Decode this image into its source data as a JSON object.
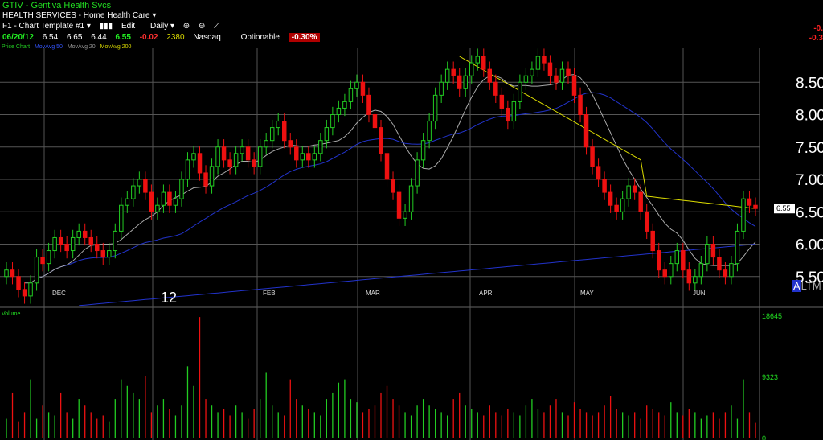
{
  "header": {
    "title": "GTIV - Gentiva Health Svcs",
    "industry": "HEALTH SERVICES - Home Health Care ▾",
    "toolbar": [
      "F1 - Chart Template #1 ▾",
      "Edit",
      "Daily ▾"
    ],
    "quote": {
      "date": "06/20/12",
      "open": "6.54",
      "high": "6.65",
      "low": "6.44",
      "close": "6.55",
      "change": "-0.02",
      "volume": "2380",
      "exchange": "Nasdaq",
      "optionable": "Optionable",
      "pct_change": "-0.30%"
    },
    "legend": {
      "price": "Price Chart",
      "ma50": "MovAvg 50",
      "ma20": "MovAvg 20",
      "ma200": "MovAvg 200"
    },
    "side_change_1": "-0.",
    "side_change_2": "-0.3",
    "year_label": "12",
    "altm": "ALTM"
  },
  "colors": {
    "up": "#22cc22",
    "down": "#ee1111",
    "ma50": "#2233cc",
    "ma20": "#aaaaaa",
    "ma200": "#dddd00",
    "grid": "#555555"
  },
  "chart_data": {
    "type": "candlestick",
    "price_axis": {
      "ticks": [
        "8.50",
        "8.00",
        "7.50",
        "7.00",
        "6.50",
        "6.00",
        "5.50"
      ],
      "min": 5.0,
      "max": 9.0
    },
    "months": [
      "DEC",
      "FEB",
      "MAR",
      "APR",
      "MAY",
      "JUN"
    ],
    "last_price": "6.55",
    "volume_axis": {
      "ticks": [
        "18645",
        "9323",
        "0"
      ],
      "max": 18645
    },
    "closes": [
      5.6,
      5.5,
      5.3,
      5.2,
      5.4,
      5.8,
      5.7,
      5.9,
      6.1,
      6.0,
      5.9,
      6.1,
      6.2,
      6.1,
      6.0,
      5.9,
      5.8,
      5.9,
      6.2,
      6.6,
      6.7,
      6.9,
      7.0,
      6.8,
      6.5,
      6.6,
      6.8,
      6.6,
      6.7,
      7.0,
      7.3,
      7.4,
      7.1,
      6.9,
      7.2,
      7.5,
      7.3,
      7.2,
      7.4,
      7.5,
      7.3,
      7.2,
      7.5,
      7.6,
      7.8,
      7.9,
      7.6,
      7.5,
      7.3,
      7.4,
      7.3,
      7.4,
      7.6,
      7.8,
      8.0,
      8.1,
      8.2,
      8.4,
      8.5,
      8.3,
      8.0,
      7.8,
      7.4,
      7.0,
      6.8,
      6.4,
      6.5,
      6.9,
      7.3,
      7.6,
      7.9,
      8.3,
      8.5,
      8.7,
      8.6,
      8.4,
      8.6,
      8.8,
      8.9,
      8.7,
      8.5,
      8.3,
      8.1,
      7.9,
      8.2,
      8.5,
      8.6,
      8.7,
      8.9,
      8.8,
      8.6,
      8.5,
      8.7,
      8.6,
      8.3,
      8.0,
      7.5,
      7.2,
      7.0,
      6.8,
      6.6,
      6.5,
      6.7,
      6.9,
      6.8,
      6.5,
      6.2,
      5.9,
      5.6,
      5.5,
      5.7,
      5.9,
      5.6,
      5.4,
      5.5,
      5.7,
      6.0,
      5.8,
      5.6,
      5.5,
      5.7,
      6.2,
      6.7,
      6.6,
      6.55
    ],
    "volumes": [
      3000,
      7000,
      2500,
      4000,
      9000,
      3000,
      5000,
      4000,
      3500,
      7000,
      4000,
      3000,
      6000,
      5000,
      4000,
      3000,
      3500,
      2500,
      6000,
      9000,
      8000,
      7000,
      6000,
      9500,
      4000,
      5000,
      6000,
      4500,
      3500,
      5000,
      11000,
      8000,
      18500,
      6000,
      5000,
      4000,
      4500,
      3500,
      5000,
      4000,
      3000,
      4500,
      6000,
      10000,
      5000,
      4000,
      3500,
      9000,
      6000,
      5000,
      4500,
      4000,
      3500,
      6000,
      7000,
      8500,
      9000,
      6000,
      5500,
      4000,
      4500,
      5000,
      7000,
      8000,
      6000,
      5000,
      4000,
      3500,
      5000,
      6000,
      5000,
      4500,
      4000,
      3500,
      6000,
      7000,
      5000,
      4500,
      4000,
      3500,
      5000,
      4000,
      3500,
      4500,
      4000,
      3500,
      5000,
      6000,
      4500,
      4000,
      5000,
      6000,
      4000,
      3500,
      5500,
      4500,
      4000,
      3500,
      4000,
      5000,
      6500,
      4500,
      4000,
      3500,
      4000,
      3000,
      5000,
      4500,
      4000,
      3500,
      5500,
      4000,
      3500,
      4500,
      4000,
      3000,
      3500,
      4000,
      3000,
      4000,
      5000,
      3000,
      9000,
      4000,
      2380
    ]
  }
}
